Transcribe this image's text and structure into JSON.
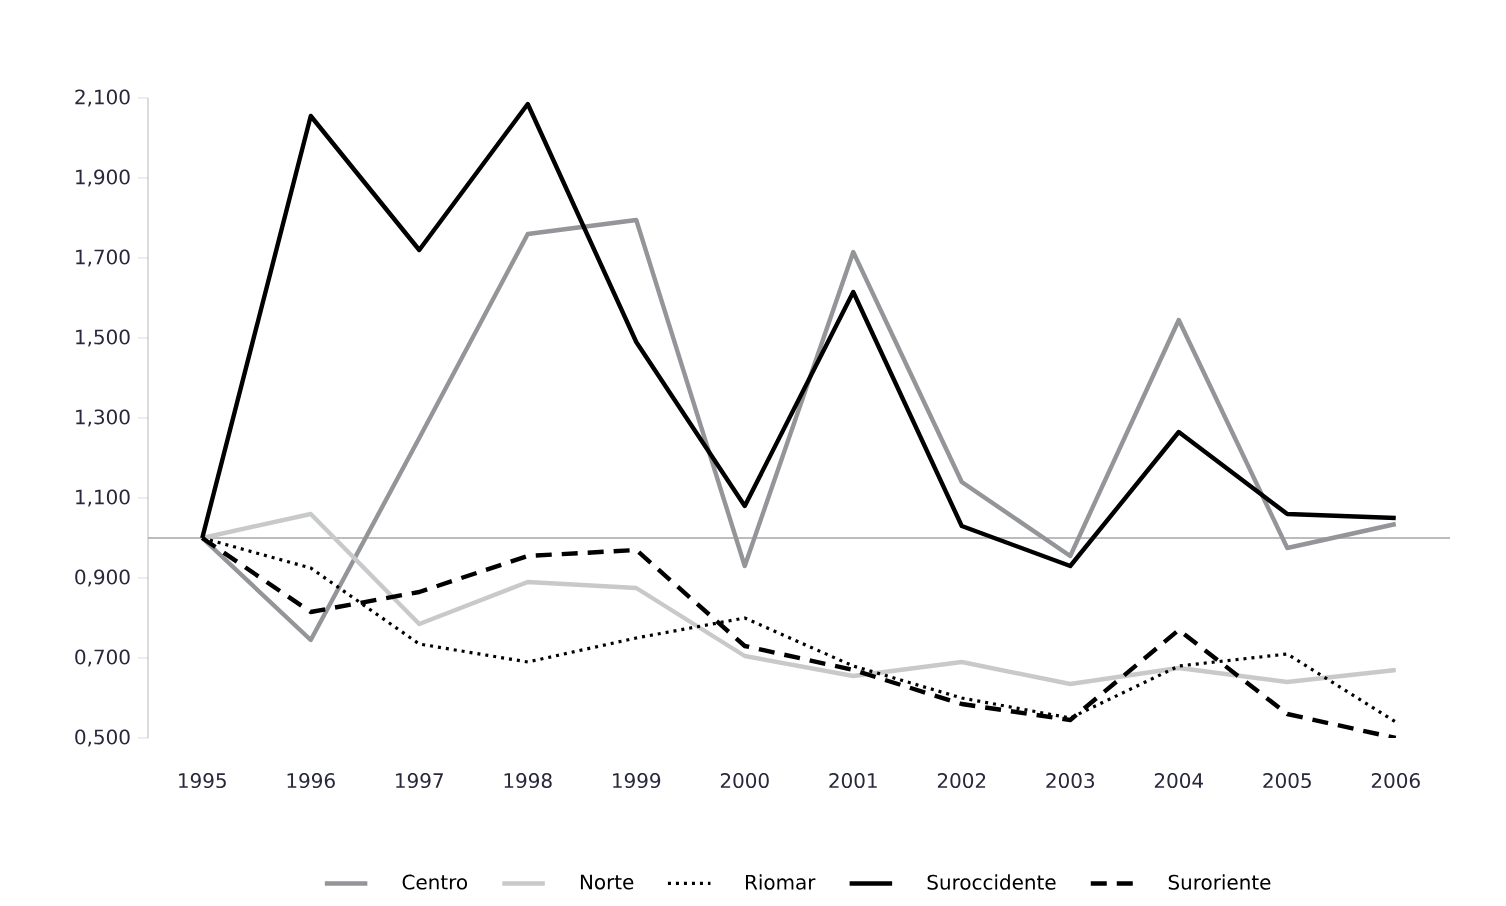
{
  "chart_data": {
    "type": "line",
    "categories": [
      "1995",
      "1996",
      "1997",
      "1998",
      "1999",
      "2000",
      "2001",
      "2002",
      "2003",
      "2004",
      "2005",
      "2006"
    ],
    "series": [
      {
        "name": "Centro",
        "color": "#939598",
        "line_style": "solid",
        "values": [
          1.0,
          0.745,
          1.25,
          1.76,
          1.795,
          0.93,
          1.715,
          1.14,
          0.955,
          1.545,
          0.975,
          1.035
        ]
      },
      {
        "name": "Norte",
        "color": "#c8c9ca",
        "line_style": "solid",
        "values": [
          1.0,
          1.06,
          0.785,
          0.89,
          0.875,
          0.705,
          0.655,
          0.69,
          0.635,
          0.675,
          0.64,
          0.67
        ]
      },
      {
        "name": "Riomar",
        "color": "#000000",
        "line_style": "dotted",
        "values": [
          1.0,
          0.925,
          0.735,
          0.69,
          0.75,
          0.8,
          0.68,
          0.6,
          0.55,
          0.68,
          0.71,
          0.54
        ]
      },
      {
        "name": "Suroccidente",
        "color": "#000000",
        "line_style": "solid",
        "values": [
          1.0,
          2.055,
          1.72,
          2.085,
          1.49,
          1.08,
          1.615,
          1.03,
          0.93,
          1.265,
          1.06,
          1.05
        ]
      },
      {
        "name": "Suroriente",
        "color": "#000000",
        "line_style": "dashed",
        "values": [
          1.0,
          0.815,
          0.865,
          0.955,
          0.97,
          0.73,
          0.67,
          0.585,
          0.545,
          0.77,
          0.56,
          0.5
        ]
      }
    ],
    "ylim": [
      0.5,
      2.1
    ],
    "yticks": [
      {
        "value": 0.5,
        "label": "0,500"
      },
      {
        "value": 0.7,
        "label": "0,700"
      },
      {
        "value": 0.9,
        "label": "0,900"
      },
      {
        "value": 1.1,
        "label": "1,100"
      },
      {
        "value": 1.3,
        "label": "1,300"
      },
      {
        "value": 1.5,
        "label": "1,500"
      },
      {
        "value": 1.7,
        "label": "1,700"
      },
      {
        "value": 1.9,
        "label": "1,900"
      },
      {
        "value": 2.1,
        "label": "2,100"
      }
    ],
    "ref_lines": [
      {
        "axis": "y",
        "value": 1.0,
        "color": "#a6a6a6"
      }
    ],
    "grid": false,
    "legend": "bottom"
  }
}
